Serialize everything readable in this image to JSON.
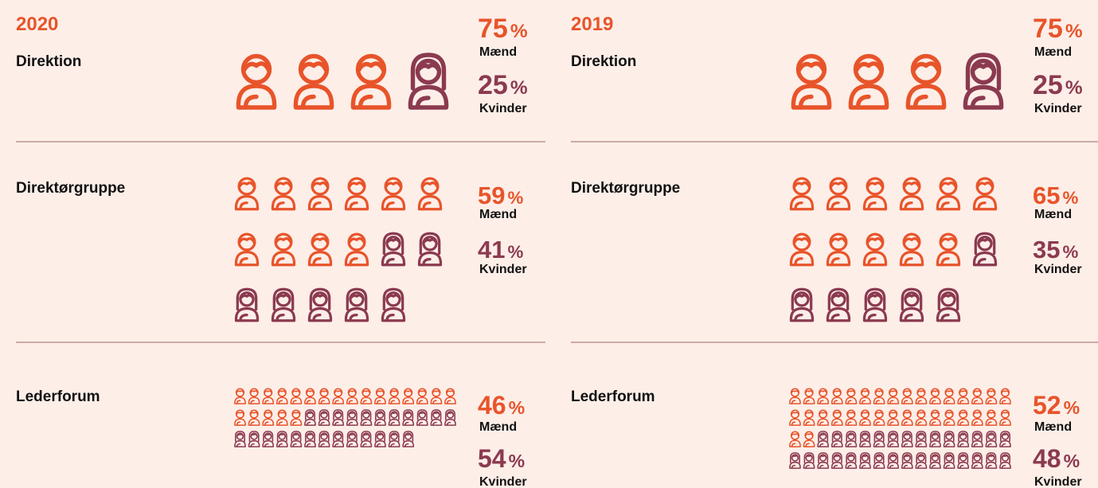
{
  "unit": "%",
  "panels": [
    {
      "year": "2020",
      "sections": [
        {
          "title": "Direktion",
          "men_percent": 75,
          "men_label": "Mænd",
          "women_percent": 25,
          "women_label": "Kvinder",
          "men_icons": 3,
          "women_icons": 1
        },
        {
          "title": "Direktørgruppe",
          "men_percent": 59,
          "men_label": "Mænd",
          "women_percent": 41,
          "women_label": "Kvinder",
          "men_icons": 10,
          "women_icons": 7
        },
        {
          "title": "Lederforum",
          "men_percent": 46,
          "men_label": "Mænd",
          "women_percent": 54,
          "women_label": "Kvinder",
          "men_icons": 21,
          "women_icons": 24
        }
      ]
    },
    {
      "year": "2019",
      "sections": [
        {
          "title": "Direktion",
          "men_percent": 75,
          "men_label": "Mænd",
          "women_percent": 25,
          "women_label": "Kvinder",
          "men_icons": 3,
          "women_icons": 1
        },
        {
          "title": "Direktørgruppe",
          "men_percent": 65,
          "men_label": "Mænd",
          "women_percent": 35,
          "women_label": "Kvinder",
          "men_icons": 11,
          "women_icons": 6
        },
        {
          "title": "Lederforum",
          "men_percent": 52,
          "men_label": "Mænd",
          "women_percent": 48,
          "women_label": "Kvinder",
          "men_icons": 34,
          "women_icons": 30
        }
      ]
    }
  ]
}
